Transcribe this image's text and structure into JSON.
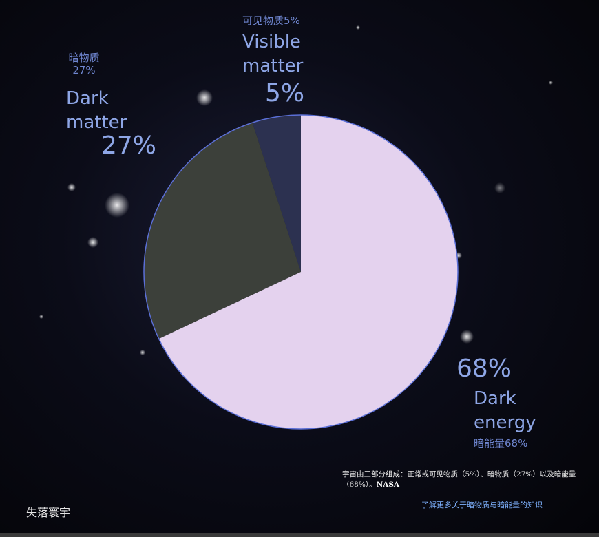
{
  "chart_data": {
    "type": "pie",
    "categories": [
      "Visible\nmatter",
      "Dark\nmatter",
      "Dark\nenergy"
    ],
    "values": [
      5,
      27,
      68
    ],
    "value_labels": [
      "5%",
      "27%",
      "68%"
    ],
    "cn_labels": [
      "可见物质5%",
      "暗物质\n27%",
      "暗能量68%"
    ],
    "colors": [
      "#2c3150",
      "#3c403a",
      "#e4d2ee"
    ],
    "border_color": "#5b6fd6"
  },
  "caption": {
    "text": "宇宙由三部分组成：正常或可见物质（5%）、暗物质（27%）以及暗能量（68%）。",
    "source": "NASA"
  },
  "footer": "失落寰宇",
  "link": "了解更多关于暗物质与暗能量的知识"
}
